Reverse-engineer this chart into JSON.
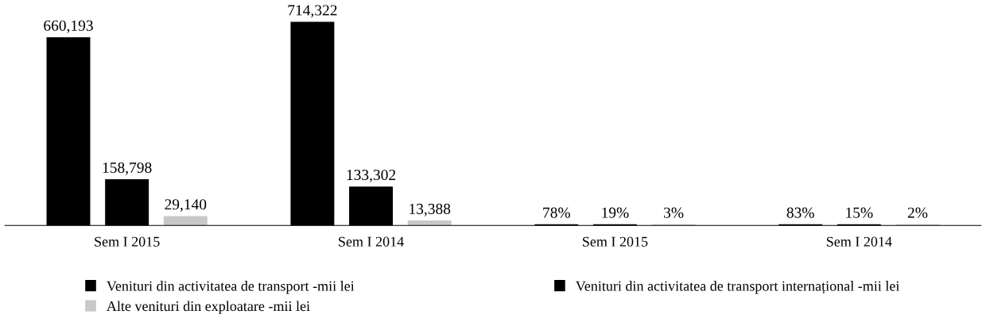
{
  "chart_data": {
    "type": "bar",
    "categories": [
      "Sem I 2015",
      "Sem I 2014",
      "Sem I 2015",
      "Sem I 2014"
    ],
    "series": [
      {
        "name": "Venituri din activitatea de transport -mii lei",
        "color": "#000000",
        "values": [
          660193,
          714322,
          78,
          83
        ],
        "value_labels": [
          "660,193",
          "714,322",
          "78%",
          "83%"
        ]
      },
      {
        "name": "Venituri din activitatea de transport internațional -mii lei",
        "color": "#000000",
        "values": [
          158798,
          133302,
          19,
          15
        ],
        "value_labels": [
          "158,798",
          "133,302",
          "19%",
          "15%"
        ]
      },
      {
        "name": "Alte venituri din exploatare -mii lei",
        "color": "#c8c8c8",
        "values": [
          29140,
          13388,
          3,
          2
        ],
        "value_labels": [
          "29,140",
          "13,388",
          "3%",
          "2%"
        ]
      }
    ],
    "tick_labels": "x",
    "grid": false,
    "legend": "bottom"
  }
}
